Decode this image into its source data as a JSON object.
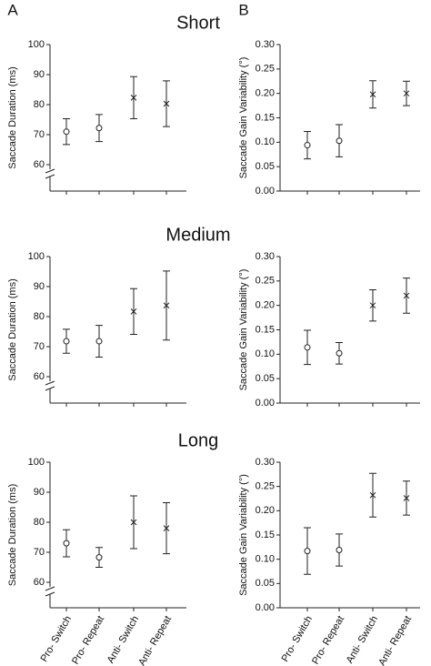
{
  "chart_data": [
    {
      "type": "errorbar",
      "panel": "A",
      "title": "Short",
      "ylabel": "Saccade Duration (ms)",
      "axis_break": true,
      "values": [
        71,
        72.2,
        82.3,
        80.3
      ],
      "errors": [
        4.3,
        4.5,
        7,
        7.6
      ],
      "markers": [
        "circle",
        "circle",
        "cross",
        "cross"
      ],
      "ylim": [
        60,
        100
      ],
      "yticks": [
        60,
        70,
        80,
        90,
        100
      ]
    },
    {
      "type": "errorbar",
      "panel": "B",
      "ylabel": "Saccade Gain Variability (°)",
      "axis_break": false,
      "values": [
        0.094,
        0.103,
        0.198,
        0.2
      ],
      "errors": [
        0.028,
        0.033,
        0.028,
        0.025
      ],
      "markers": [
        "circle",
        "circle",
        "cross",
        "cross"
      ],
      "ylim": [
        0,
        0.3
      ],
      "yticks": [
        {
          "value": 0,
          "label": "0.00"
        },
        {
          "value": 0.05,
          "label": "0.05"
        },
        {
          "value": 0.1,
          "label": "0.10"
        },
        {
          "value": 0.15,
          "label": "0.15"
        },
        {
          "value": 0.2,
          "label": "0.20"
        },
        {
          "value": 0.25,
          "label": "0.25"
        },
        {
          "value": 0.3,
          "label": "0.30"
        }
      ]
    },
    {
      "type": "errorbar",
      "title": "Medium",
      "ylabel": "Saccade Duration (ms)",
      "axis_break": true,
      "values": [
        71.8,
        71.8,
        81.7,
        83.7
      ],
      "errors": [
        4,
        5.3,
        7.6,
        11.5
      ],
      "markers": [
        "circle",
        "circle",
        "cross",
        "cross"
      ],
      "ylim": [
        60,
        100
      ],
      "yticks": [
        60,
        70,
        80,
        90,
        100
      ]
    },
    {
      "type": "errorbar",
      "ylabel": "Saccade Gain Variability (°)",
      "axis_break": false,
      "values": [
        0.114,
        0.102,
        0.2,
        0.22
      ],
      "errors": [
        0.035,
        0.022,
        0.032,
        0.036
      ],
      "markers": [
        "circle",
        "circle",
        "cross",
        "cross"
      ],
      "ylim": [
        0,
        0.3
      ],
      "yticks": [
        {
          "value": 0,
          "label": "0.00"
        },
        {
          "value": 0.05,
          "label": "0.05"
        },
        {
          "value": 0.1,
          "label": "0.10"
        },
        {
          "value": 0.15,
          "label": "0.15"
        },
        {
          "value": 0.2,
          "label": "0.20"
        },
        {
          "value": 0.25,
          "label": "0.25"
        },
        {
          "value": 0.3,
          "label": "0.30"
        }
      ]
    },
    {
      "type": "errorbar",
      "title": "Long",
      "ylabel": "Saccade Duration (ms)",
      "axis_break": true,
      "categories": [
        "Pro- Switch",
        "Pro- Repeat",
        "Anti- Switch",
        "Anti- Repeat"
      ],
      "values": [
        73,
        68.3,
        80,
        78
      ],
      "errors": [
        4.5,
        3.3,
        8.8,
        8.5
      ],
      "markers": [
        "circle",
        "circle",
        "cross",
        "cross"
      ],
      "ylim": [
        60,
        100
      ],
      "yticks": [
        60,
        70,
        80,
        90,
        100
      ]
    },
    {
      "type": "errorbar",
      "ylabel": "Saccade Gain Variability (°)",
      "axis_break": false,
      "categories": [
        "Pro- Switch",
        "Pro- Repeat",
        "Anti- Switch",
        "Anti- Repeat"
      ],
      "values": [
        0.117,
        0.119,
        0.232,
        0.226
      ],
      "errors": [
        0.048,
        0.033,
        0.045,
        0.035
      ],
      "markers": [
        "circle",
        "circle",
        "cross",
        "cross"
      ],
      "ylim": [
        0,
        0.3
      ],
      "yticks": [
        {
          "value": 0,
          "label": "0.00"
        },
        {
          "value": 0.05,
          "label": "0.05"
        },
        {
          "value": 0.1,
          "label": "0.10"
        },
        {
          "value": 0.15,
          "label": "0.15"
        },
        {
          "value": 0.2,
          "label": "0.20"
        },
        {
          "value": 0.25,
          "label": "0.25"
        },
        {
          "value": 0.3,
          "label": "0.30"
        }
      ]
    }
  ]
}
